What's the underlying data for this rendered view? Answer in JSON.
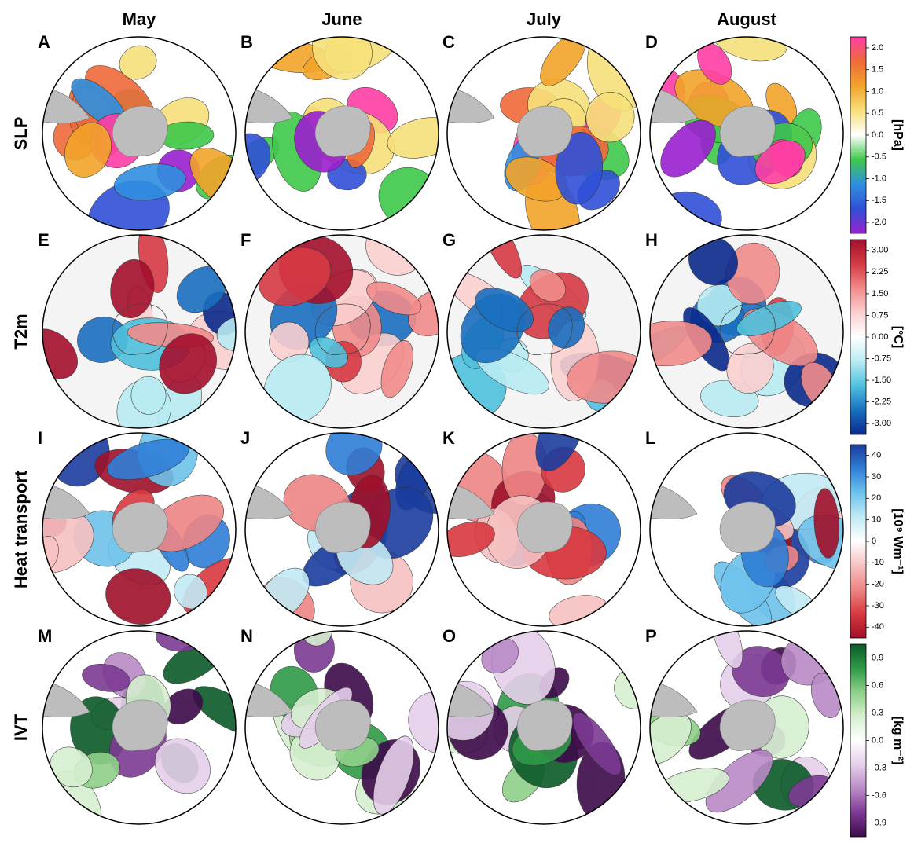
{
  "columns": [
    "May",
    "June",
    "July",
    "August"
  ],
  "rows": [
    {
      "label": "SLP",
      "panels": [
        "A",
        "B",
        "C",
        "D"
      ],
      "colorbar": {
        "ticks": [
          "2.0",
          "1.5",
          "1.0",
          "0.5",
          "0.0",
          "-0.5",
          "-1.0",
          "-1.5",
          "-2.0"
        ],
        "unit": "[hPa]"
      }
    },
    {
      "label": "T2m",
      "panels": [
        "E",
        "F",
        "G",
        "H"
      ],
      "colorbar": {
        "ticks": [
          "3.00",
          "2.25",
          "1.50",
          "0.75",
          "0.00",
          "-0.75",
          "-1.50",
          "-2.25",
          "-3.00"
        ],
        "unit": "[°C]"
      }
    },
    {
      "label": "Heat transport",
      "panels": [
        "I",
        "J",
        "K",
        "L"
      ],
      "colorbar": {
        "ticks": [
          "40",
          "30",
          "20",
          "10",
          "0",
          "-10",
          "-20",
          "-30",
          "-40"
        ],
        "unit": "[10⁹ Wm⁻¹]"
      }
    },
    {
      "label": "IVT",
      "panels": [
        "M",
        "N",
        "O",
        "P"
      ],
      "colorbar": {
        "ticks": [
          "0.9",
          "0.6",
          "0.3",
          "0.0",
          "-0.3",
          "-0.6",
          "-0.9"
        ],
        "unit": "[kg m⁻²]"
      }
    }
  ]
}
